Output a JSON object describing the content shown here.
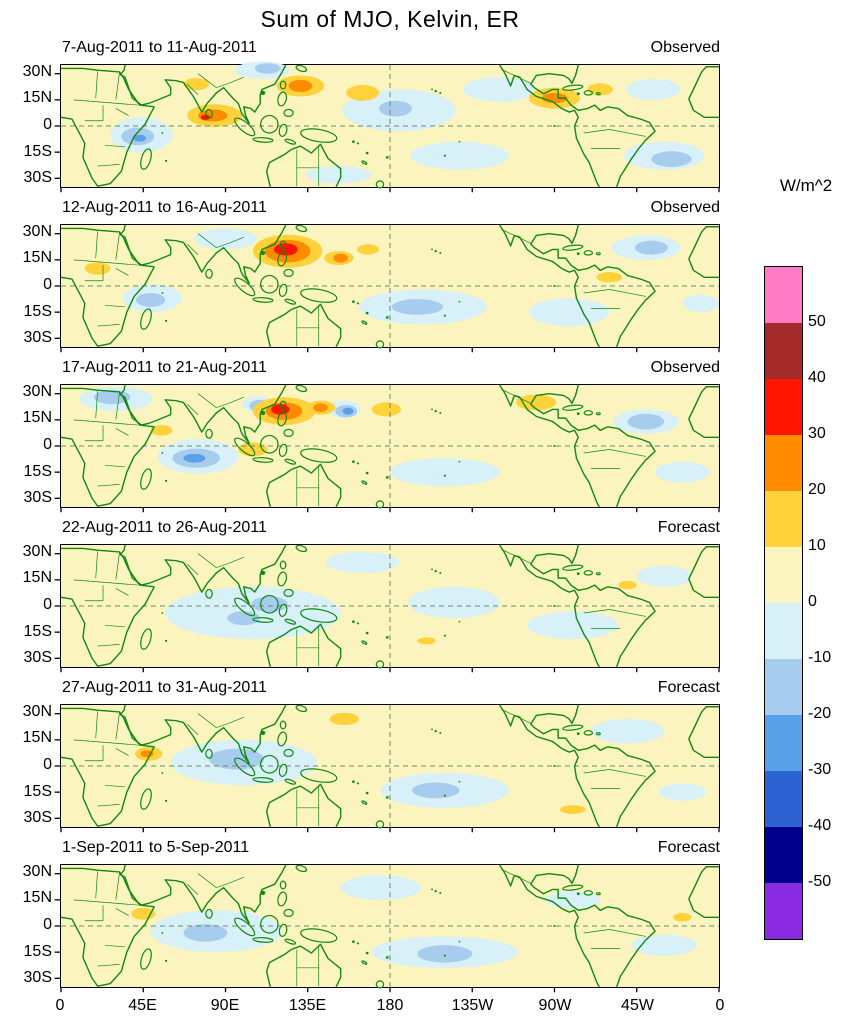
{
  "page_title": "Sum of MJO, Kelvin, ER",
  "axes": {
    "lat_ticks": [
      "30N",
      "15N",
      "0",
      "15S",
      "30S"
    ],
    "lon_ticks": [
      "0",
      "45E",
      "90E",
      "135E",
      "180",
      "135W",
      "90W",
      "45W",
      "0"
    ]
  },
  "colorbar": {
    "label": "W/m^2",
    "tick_labels": [
      "50",
      "40",
      "30",
      "20",
      "10",
      "0",
      "-10",
      "-20",
      "-30",
      "-40",
      "-50"
    ],
    "colors_top_to_bottom": [
      "#ff7bc5",
      "#a52a2a",
      "#ff1400",
      "#ff8c00",
      "#ffd23b",
      "#fbf4be",
      "#d8f0f8",
      "#a8ccee",
      "#58a0e8",
      "#2d62d2",
      "#00008b",
      "#8a2be2"
    ]
  },
  "map_style": {
    "sea_base": "#fbf4be",
    "coast_color": "#0f8a0f",
    "dash_color": "#6b8b6b",
    "level_colors": {
      "neg10": "#d8f0f8",
      "neg20": "#a8ccee",
      "neg30": "#58a0e8",
      "pos20": "#ffd23b",
      "pos30": "#ff8c00",
      "pos40": "#ff1400"
    }
  },
  "chart_data": {
    "type": "heatmap",
    "subtype": "filled-contour-map-panels",
    "title": "Sum of MJO, Kelvin, ER",
    "units": "W/m^2",
    "contour_levels": [
      -50,
      -40,
      -30,
      -20,
      -10,
      0,
      10,
      20,
      30,
      40,
      50
    ],
    "lat_range_deg": [
      -35,
      35
    ],
    "lon_range_deg": [
      0,
      360
    ],
    "lat_tick_values": [
      30,
      15,
      0,
      -15,
      -30
    ],
    "lon_tick_values": [
      0,
      45,
      90,
      135,
      180,
      225,
      270,
      315,
      360
    ],
    "grid": {
      "equator_dashed": true,
      "dateline_dashed": true
    },
    "legend_position": "right",
    "level_meaning": {
      "neg10": "-10 to 0 W/m^2",
      "neg20": "-20 to -10 W/m^2",
      "neg30": "-30 to -20 W/m^2",
      "pos20": "10 to 20 W/m^2",
      "pos30": "20 to 30 W/m^2",
      "pos40": "30 to 40 W/m^2"
    },
    "panels": [
      {
        "period": "7-Aug-2011 to 11-Aug-2011",
        "source": "Observed",
        "anomalies": [
          [
            44,
            -5,
            17,
            10,
            "neg10"
          ],
          [
            185,
            9,
            31,
            12,
            "neg10"
          ],
          [
            218,
            -17,
            27,
            8,
            "neg10"
          ],
          [
            240,
            21,
            20,
            7,
            "neg10"
          ],
          [
            330,
            -17,
            22,
            8,
            "neg10"
          ],
          [
            324,
            21,
            15,
            6,
            "neg10"
          ],
          [
            110,
            32,
            15,
            5,
            "neg10"
          ],
          [
            152,
            -28,
            18,
            5,
            "neg10"
          ],
          [
            42,
            -6,
            9,
            5,
            "neg20"
          ],
          [
            183,
            10,
            9,
            4.5,
            "neg20"
          ],
          [
            334,
            -19,
            11,
            4.5,
            "neg20"
          ],
          [
            113,
            33,
            7,
            3,
            "neg20"
          ],
          [
            43,
            -7,
            3.5,
            2,
            "neg30"
          ],
          [
            84,
            6,
            15,
            6.5,
            "pos20"
          ],
          [
            131,
            23,
            13,
            6,
            "pos20"
          ],
          [
            165,
            19,
            9,
            4.5,
            "pos20"
          ],
          [
            270,
            16,
            14,
            6,
            "pos20"
          ],
          [
            295,
            21,
            7,
            3.5,
            "pos20"
          ],
          [
            74,
            24,
            7,
            3.5,
            "pos20"
          ],
          [
            83,
            6,
            8,
            3.5,
            "pos30"
          ],
          [
            131,
            23,
            6.5,
            3.5,
            "pos30"
          ],
          [
            270,
            16,
            7,
            3,
            "pos30"
          ],
          [
            79,
            5,
            2.5,
            1.5,
            "pos40"
          ]
        ]
      },
      {
        "period": "12-Aug-2011 to 16-Aug-2011",
        "source": "Observed",
        "anomalies": [
          [
            50,
            -7,
            16,
            8,
            "neg10"
          ],
          [
            198,
            -12,
            35,
            10,
            "neg10"
          ],
          [
            320,
            22,
            19,
            7,
            "neg10"
          ],
          [
            278,
            -15,
            22,
            8,
            "neg10"
          ],
          [
            90,
            27,
            17,
            6,
            "neg10"
          ],
          [
            350,
            -10,
            10,
            5,
            "neg10"
          ],
          [
            49,
            -8,
            8,
            4,
            "neg20"
          ],
          [
            195,
            -12,
            14,
            4.5,
            "neg20"
          ],
          [
            323,
            22,
            9,
            4,
            "neg20"
          ],
          [
            124,
            20,
            19,
            9.5,
            "pos20"
          ],
          [
            152,
            16,
            8,
            4,
            "pos20"
          ],
          [
            20,
            10,
            7,
            3.5,
            "pos20"
          ],
          [
            168,
            21,
            6,
            3,
            "pos20"
          ],
          [
            300,
            5,
            7,
            3,
            "pos20"
          ],
          [
            124,
            20,
            12.5,
            6.5,
            "pos30"
          ],
          [
            153,
            16,
            4,
            2.5,
            "pos30"
          ],
          [
            123,
            21,
            6.5,
            3.5,
            "pos40"
          ]
        ]
      },
      {
        "period": "17-Aug-2011 to 21-Aug-2011",
        "source": "Observed",
        "anomalies": [
          [
            75,
            -6,
            22,
            10,
            "neg10"
          ],
          [
            210,
            -15,
            30,
            8,
            "neg10"
          ],
          [
            320,
            14,
            18,
            7,
            "neg10"
          ],
          [
            30,
            27,
            20,
            7,
            "neg10"
          ],
          [
            155,
            21,
            9,
            5,
            "neg10"
          ],
          [
            108,
            24,
            9,
            4.5,
            "neg10"
          ],
          [
            340,
            -15,
            15,
            6,
            "neg10"
          ],
          [
            74,
            -7,
            13,
            5.5,
            "neg20"
          ],
          [
            109,
            23,
            6,
            3.5,
            "neg20"
          ],
          [
            156,
            20,
            6,
            3.5,
            "neg20"
          ],
          [
            320,
            14,
            10,
            4.5,
            "neg20"
          ],
          [
            28,
            28,
            10,
            4,
            "neg20"
          ],
          [
            73,
            -7,
            6,
            2.5,
            "neg30"
          ],
          [
            157,
            20,
            3,
            2,
            "neg30"
          ],
          [
            122,
            20,
            17,
            8,
            "pos20"
          ],
          [
            142,
            22,
            8,
            4,
            "pos20"
          ],
          [
            178,
            21,
            8,
            4,
            "pos20"
          ],
          [
            260,
            25,
            11,
            4.5,
            "pos20"
          ],
          [
            105,
            -2,
            8,
            4,
            "pos20"
          ],
          [
            55,
            9,
            6,
            3,
            "pos20"
          ],
          [
            122,
            20,
            10,
            5,
            "pos30"
          ],
          [
            142,
            22,
            4,
            2.5,
            "pos30"
          ],
          [
            120,
            21,
            5,
            3,
            "pos40"
          ]
        ]
      },
      {
        "period": "22-Aug-2011 to 26-Aug-2011",
        "source": "Forecast",
        "anomalies": [
          [
            105,
            -4,
            48,
            15,
            "neg10"
          ],
          [
            215,
            2,
            25,
            9,
            "neg10"
          ],
          [
            280,
            -11,
            25,
            8,
            "neg10"
          ],
          [
            330,
            17,
            15,
            6,
            "neg10"
          ],
          [
            165,
            25,
            20,
            6,
            "neg10"
          ],
          [
            114,
            1,
            10,
            4.5,
            "neg20"
          ],
          [
            100,
            -7,
            9,
            4,
            "neg20"
          ],
          [
            310,
            12,
            5,
            2.5,
            "pos20"
          ],
          [
            200,
            -20,
            5,
            2,
            "pos20"
          ]
        ]
      },
      {
        "period": "27-Aug-2011 to 31-Aug-2011",
        "source": "Forecast",
        "anomalies": [
          [
            100,
            2,
            40,
            13,
            "neg10"
          ],
          [
            210,
            -14,
            35,
            10,
            "neg10"
          ],
          [
            310,
            20,
            20,
            7,
            "neg10"
          ],
          [
            340,
            -15,
            13,
            5,
            "neg10"
          ],
          [
            96,
            4,
            15,
            6,
            "neg20"
          ],
          [
            205,
            -14,
            13,
            4.5,
            "neg20"
          ],
          [
            48,
            7,
            7.5,
            4,
            "pos20"
          ],
          [
            155,
            27,
            8,
            3.5,
            "pos20"
          ],
          [
            280,
            -25,
            7,
            2.5,
            "pos20"
          ],
          [
            47,
            7,
            3.5,
            2,
            "pos30"
          ]
        ]
      },
      {
        "period": "1-Sep-2011 to 5-Sep-2011",
        "source": "Forecast",
        "anomalies": [
          [
            85,
            -3,
            36,
            12,
            "neg10"
          ],
          [
            210,
            -15,
            40,
            9,
            "neg10"
          ],
          [
            175,
            22,
            22,
            7,
            "neg10"
          ],
          [
            330,
            -11,
            18,
            6,
            "neg10"
          ],
          [
            280,
            15,
            15,
            5,
            "neg10"
          ],
          [
            79,
            -4,
            12,
            5,
            "neg20"
          ],
          [
            210,
            -16,
            15,
            5,
            "neg20"
          ],
          [
            45,
            7,
            6.5,
            3.5,
            "pos20"
          ],
          [
            340,
            5,
            5,
            2.5,
            "pos20"
          ]
        ]
      }
    ]
  }
}
